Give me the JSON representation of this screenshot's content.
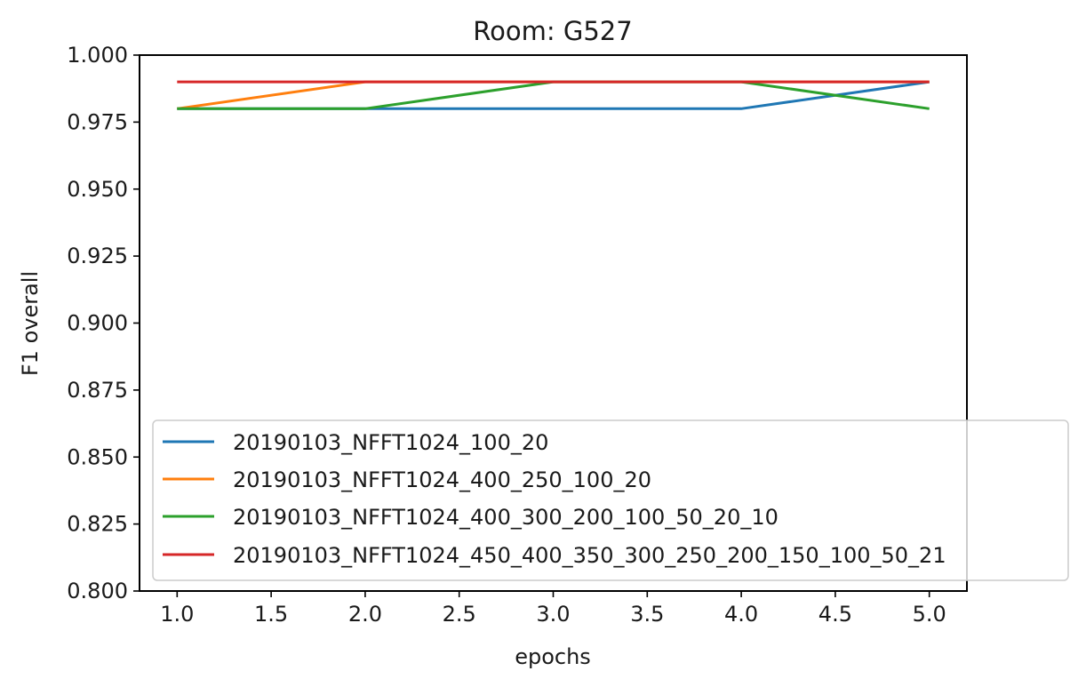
{
  "chart_data": {
    "type": "line",
    "title": "Room: G527",
    "xlabel": "epochs",
    "ylabel": "F1 overall",
    "xlim": [
      0.8,
      5.2
    ],
    "ylim": [
      0.8,
      1.0
    ],
    "xticks": [
      "1.0",
      "1.5",
      "2.0",
      "2.5",
      "3.0",
      "3.5",
      "4.0",
      "4.5",
      "5.0"
    ],
    "yticks": [
      "0.800",
      "0.825",
      "0.850",
      "0.875",
      "0.900",
      "0.925",
      "0.950",
      "0.975",
      "1.000"
    ],
    "grid": false,
    "legend_position": "lower-right",
    "x": [
      1,
      2,
      3,
      4,
      5
    ],
    "series": [
      {
        "name": "20190103_NFFT1024_100_20",
        "color": "#1f77b4",
        "values": [
          0.98,
          0.98,
          0.98,
          0.98,
          0.99
        ]
      },
      {
        "name": "20190103_NFFT1024_400_250_100_20",
        "color": "#ff7f0e",
        "values": [
          0.98,
          0.99,
          0.99,
          0.99,
          0.99
        ]
      },
      {
        "name": "20190103_NFFT1024_400_300_200_100_50_20_10",
        "color": "#2ca02c",
        "values": [
          0.98,
          0.98,
          0.99,
          0.99,
          0.98
        ]
      },
      {
        "name": "20190103_NFFT1024_450_400_350_300_250_200_150_100_50_21",
        "color": "#d62728",
        "values": [
          0.99,
          0.99,
          0.99,
          0.99,
          0.99
        ]
      }
    ]
  }
}
